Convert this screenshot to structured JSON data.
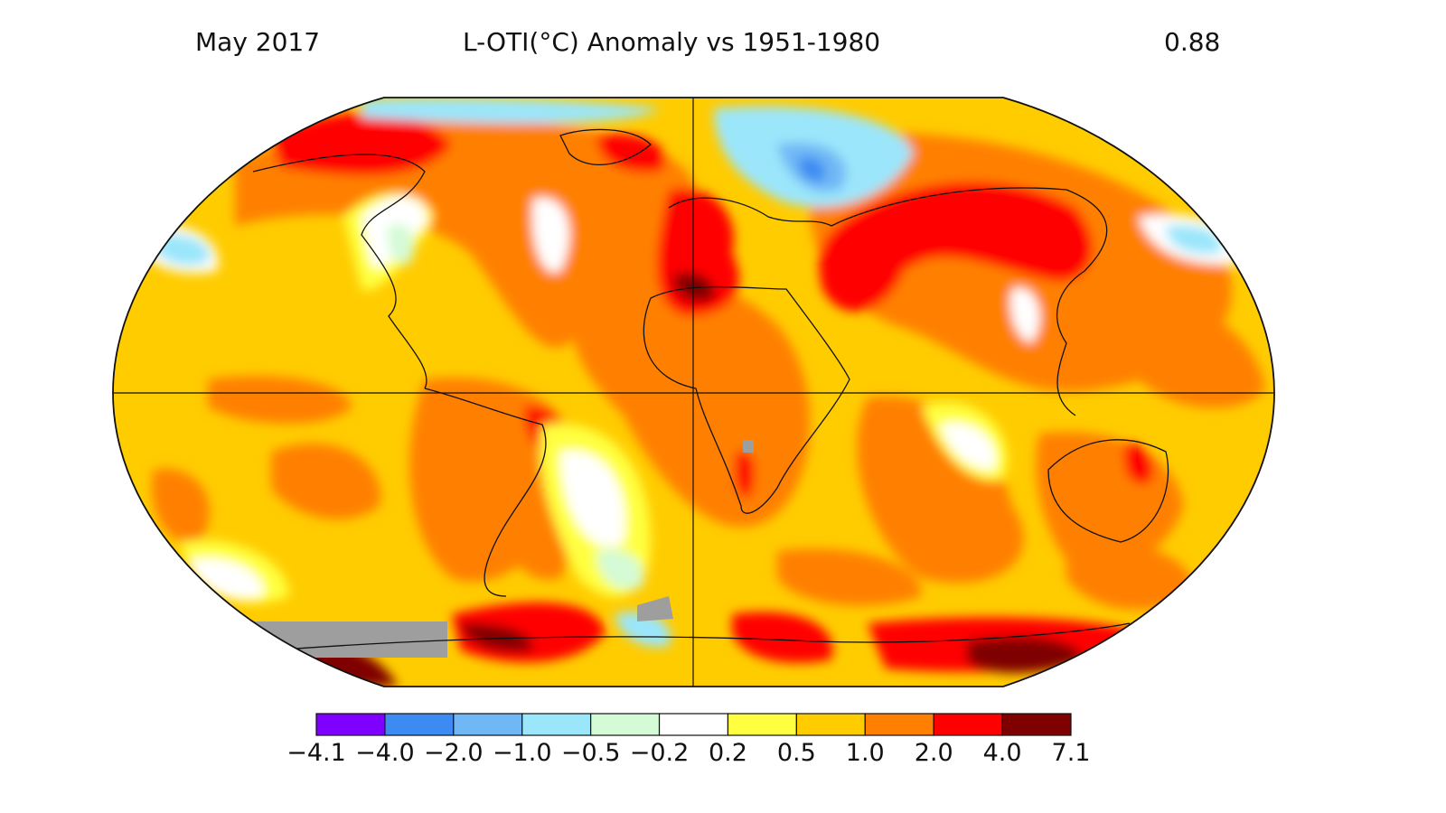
{
  "header": {
    "date": "May 2017",
    "title": "L-OTI(°C) Anomaly vs 1951-1980",
    "global_mean": "0.88"
  },
  "colorbar": {
    "labels": [
      "−4.1",
      "−4.0",
      "−2.0",
      "−1.0",
      "−0.5",
      "−0.2",
      "0.2",
      "0.5",
      "1.0",
      "2.0",
      "4.0",
      "7.1"
    ],
    "colors": [
      "#7f00ff",
      "#3d8bf2",
      "#6fb8f5",
      "#9be6fb",
      "#d4fbd6",
      "#ffffff",
      "#ffff40",
      "#ffcc00",
      "#ff8000",
      "#ff0000",
      "#7f0000"
    ]
  },
  "map": {
    "projection": "Robinson",
    "missing_data_color": "#9e9e9e",
    "grid": "equator and prime meridian"
  }
}
